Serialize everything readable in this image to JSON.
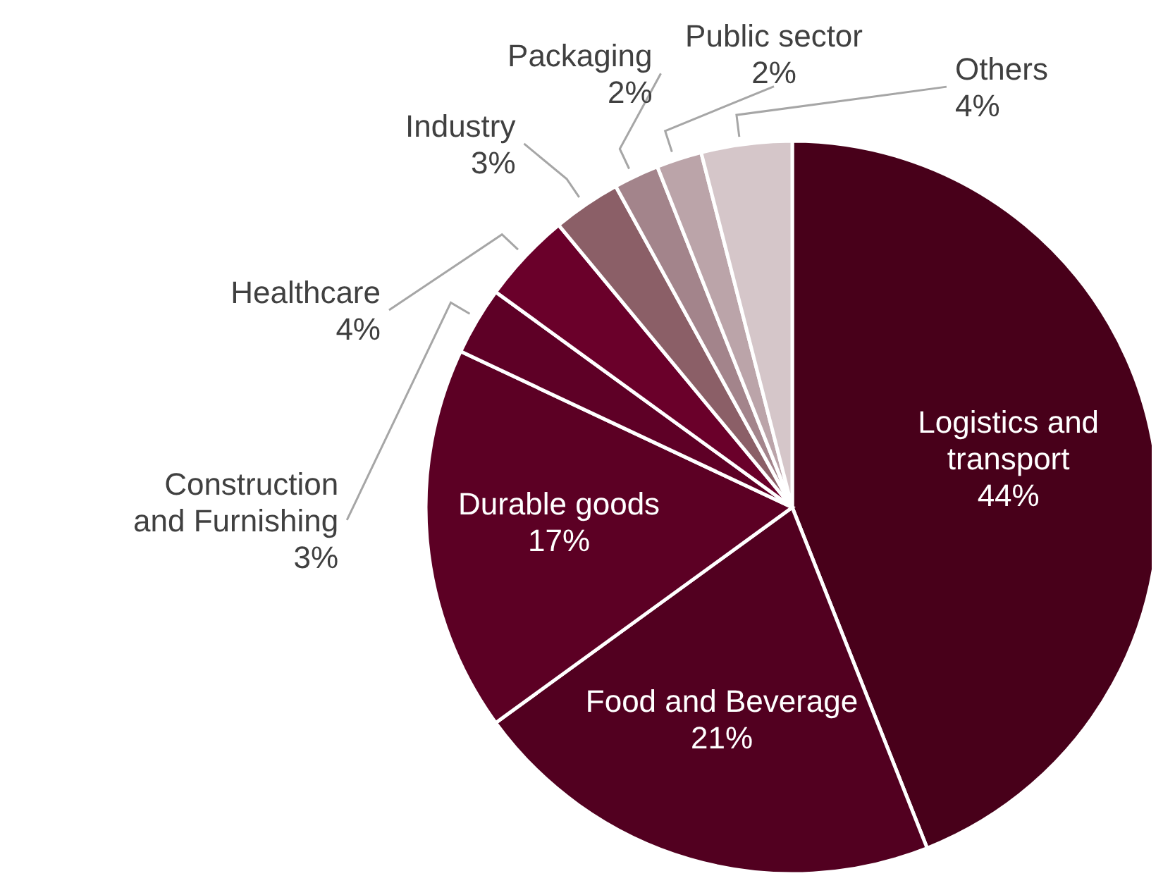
{
  "chart_data": {
    "type": "pie",
    "categories": [
      "Logistics and transport",
      "Food and Beverage",
      "Durable goods",
      "Construction and Furnishing",
      "Healthcare",
      "Industry",
      "Packaging",
      "Public sector",
      "Others"
    ],
    "values": [
      44,
      21,
      17,
      3,
      4,
      3,
      2,
      2,
      4
    ],
    "value_labels": [
      "44%",
      "21%",
      "17%",
      "3%",
      "4%",
      "3%",
      "2%",
      "2%",
      "4%"
    ],
    "colors": [
      "#48001a",
      "#520020",
      "#5c0024",
      "#5e0026",
      "#6a002a",
      "#8b5f67",
      "#a3848b",
      "#bba4a9",
      "#d5c6c9"
    ]
  }
}
